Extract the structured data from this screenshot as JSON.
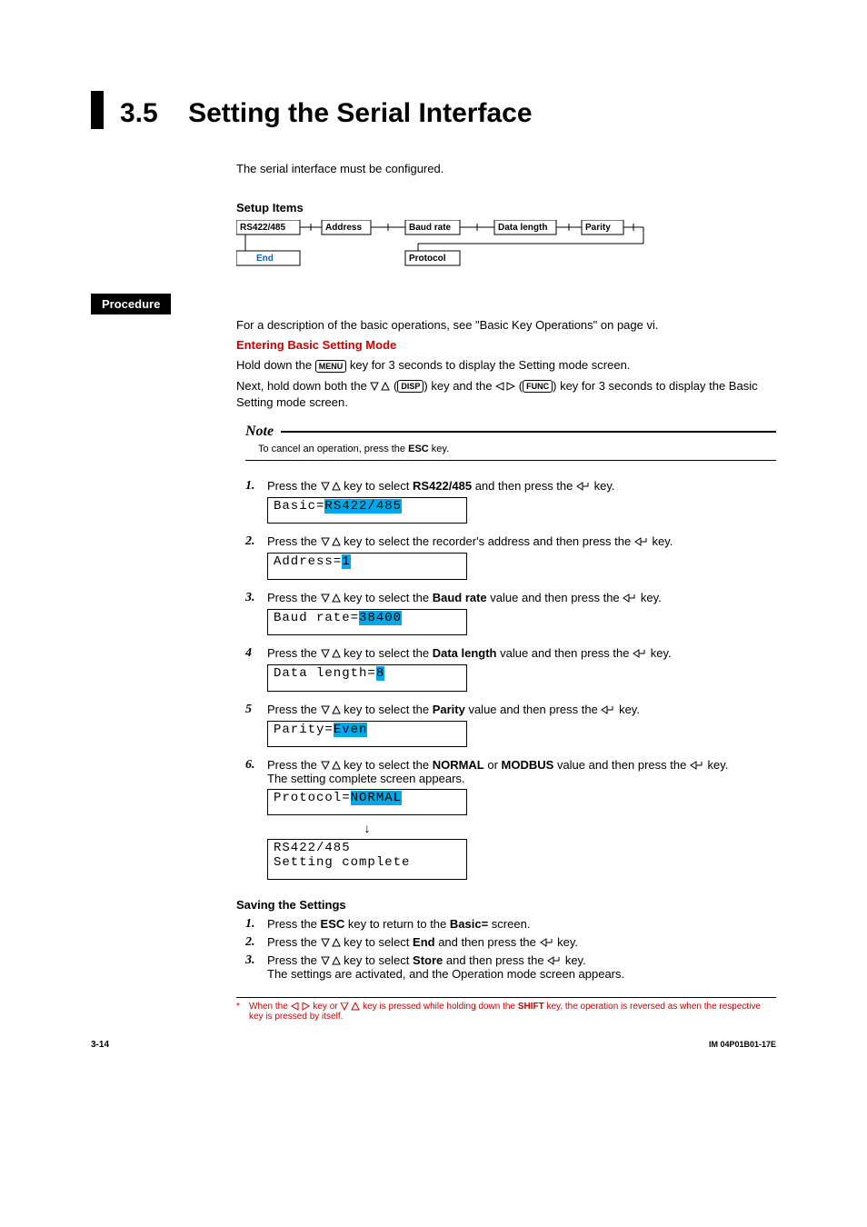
{
  "title": {
    "number": "3.5",
    "text": "Setting the Serial Interface"
  },
  "intro": "The serial interface must be configured.",
  "setup": {
    "heading": "Setup Items",
    "boxes": [
      "RS422/485",
      "Address",
      "Baud rate",
      "Data length",
      "Parity",
      "End",
      "Protocol"
    ]
  },
  "procedure_label": "Procedure",
  "basic_ref": "For a description of the basic operations, see \"Basic Key Operations\" on page vi.",
  "entering": {
    "heading": "Entering Basic Setting Mode",
    "l1a": "Hold down the ",
    "menu_key": "MENU",
    "l1b": " key for 3 seconds to display the Setting mode screen.",
    "l2a": "Next, hold down both the ",
    "disp_key": "DISP",
    "l2b": ") key and the ",
    "func_key": "FUNC",
    "l2c": ") key for 3 seconds to display the Basic Setting mode screen."
  },
  "note": {
    "label": "Note",
    "body_a": "To cancel an operation, press the ",
    "body_b": " key.",
    "esc": "ESC"
  },
  "arrow_ud": "▽△",
  "arrow_lr": "◁ ▷",
  "enter": "↵",
  "steps": [
    {
      "n": "1.",
      "a": "Press the ",
      "b": " key to select ",
      "bold": "RS422/485",
      "c": " and then press the ",
      "d": " key.",
      "lcd_label": "Basic=",
      "lcd_val": "RS422/485"
    },
    {
      "n": "2.",
      "a": "Press the ",
      "b": " key to select the recorder's address and then press the ",
      "bold": "",
      "c": "",
      "d": " key.",
      "lcd_label": "Address=",
      "lcd_val": "1"
    },
    {
      "n": "3.",
      "a": "Press the ",
      "b": " key to select the ",
      "bold": "Baud rate",
      "c": " value and then press the ",
      "d": " key.",
      "lcd_label": "Baud rate=",
      "lcd_val": "38400"
    },
    {
      "n": "4",
      "a": "Press the ",
      "b": " key to select the ",
      "bold": "Data length",
      "c": " value and then press the ",
      "d": " key.",
      "lcd_label": "Data length=",
      "lcd_val": "8"
    },
    {
      "n": "5",
      "a": "Press the ",
      "b": " key to select the ",
      "bold": "Parity",
      "c": " value and then press the ",
      "d": " key.",
      "lcd_label": "Parity=",
      "lcd_val": "Even"
    },
    {
      "n": "6.",
      "a": "Press the ",
      "b": " key to select the ",
      "bold": "NORMAL",
      "bold2_sep": " or ",
      "bold2": "MODBUS",
      "c": " value and then press the ",
      "d": " key.",
      "extra": "The setting complete screen appears.",
      "lcd_label": "Protocol=",
      "lcd_val": "NORMAL",
      "lcd2a": "RS422/485",
      "lcd2b": "Setting complete"
    }
  ],
  "saving": {
    "heading": "Saving the Settings",
    "s1a": "Press the ",
    "s1b": " key to return to the ",
    "s1c": " screen.",
    "esc": "ESC",
    "basic": "Basic=",
    "s2a": "Press the ",
    "s2b": " key to select ",
    "s2c": " and then press the ",
    "s2d": " key.",
    "end": "End",
    "s3a": "Press the ",
    "s3b": " key to select ",
    "s3c": " and then press the ",
    "s3d": " key.",
    "store": "Store",
    "s3e": "The settings are activated, and the Operation mode screen appears."
  },
  "footnote": {
    "a": "When the ",
    "b": " key or ",
    "c": " key is pressed while holding down the ",
    "shift": "SHIFT",
    "d": " key, the operation is reversed as when the respective key is pressed by itself."
  },
  "footer": {
    "left": "3-14",
    "right": "IM 04P01B01-17E"
  }
}
